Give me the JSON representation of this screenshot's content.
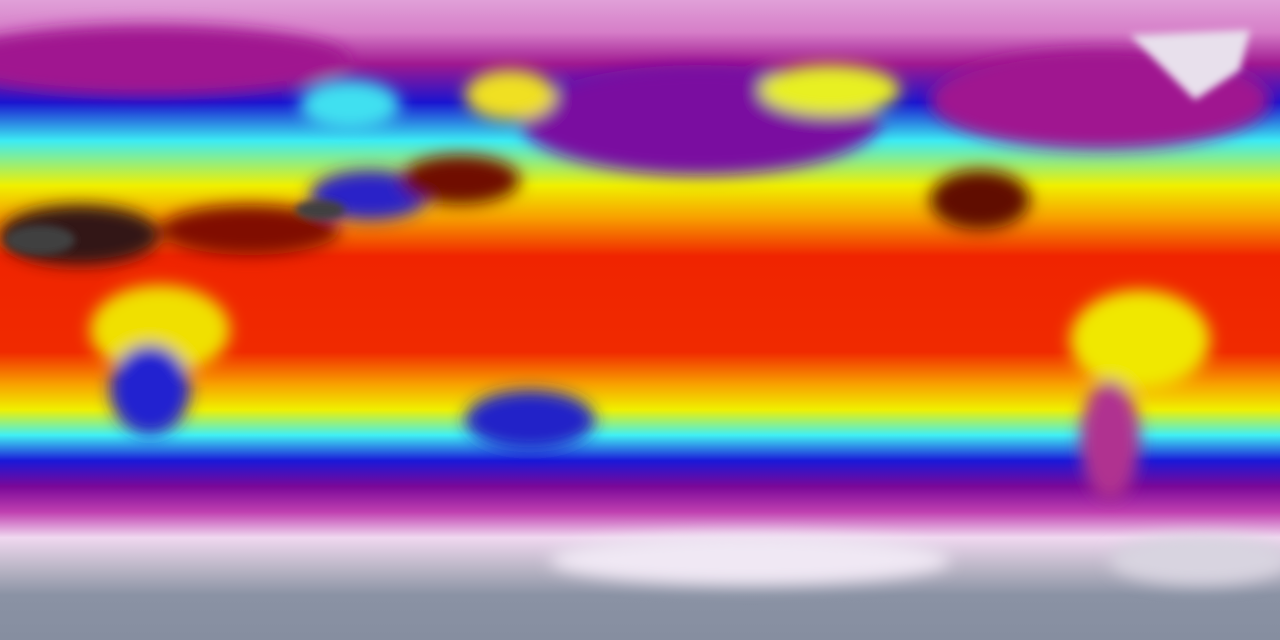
{
  "map": {
    "projection": "equirectangular",
    "variable": "temperature",
    "palette": {
      "polar_cold": "#8a92a4",
      "very_cold": "#f0e0f0",
      "cold": "#d070c0",
      "cool_magenta": "#9a1090",
      "cool_blue": "#1414d8",
      "mild": "#40f4f4",
      "warm": "#f4f000",
      "hot": "#f02000",
      "very_hot": "#301010"
    }
  }
}
